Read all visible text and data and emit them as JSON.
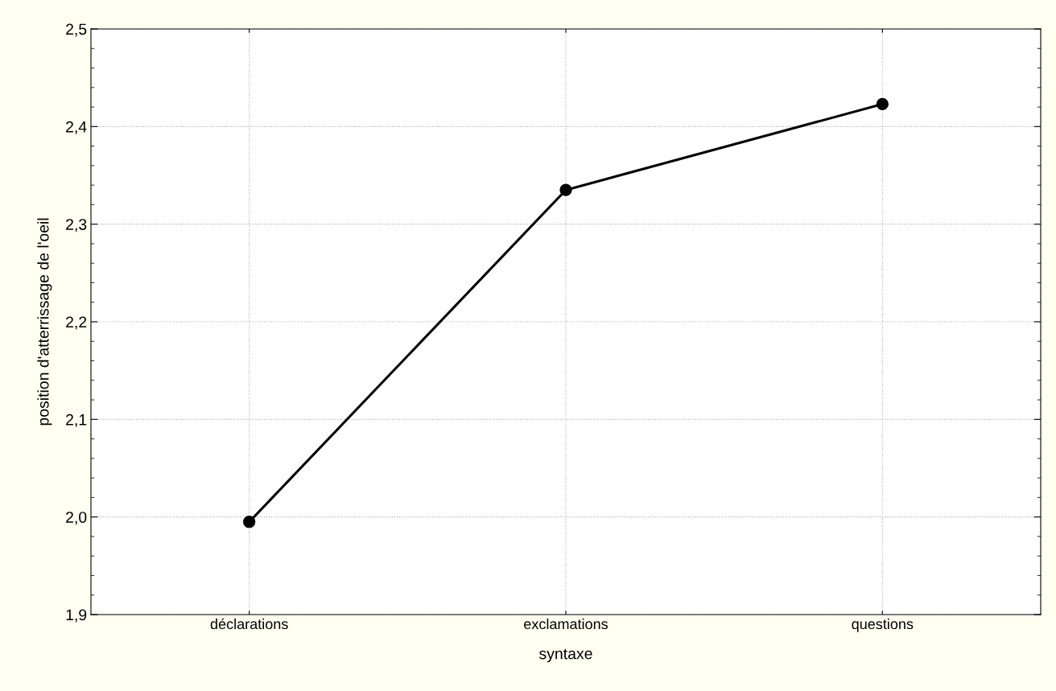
{
  "chart_data": {
    "type": "line",
    "xlabel": "syntaxe",
    "ylabel": "position d'atterrissage de l'oeil",
    "categories": [
      "déclarations",
      "exclamations",
      "questions"
    ],
    "series": [
      {
        "color": "#000000",
        "values": [
          1.995,
          2.335,
          2.423
        ]
      }
    ],
    "ylim": [
      1.9,
      2.5
    ],
    "yticks": [
      {
        "value": 1.9,
        "label": "1,9"
      },
      {
        "value": 2.0,
        "label": "2,0"
      },
      {
        "value": 2.1,
        "label": "2,1"
      },
      {
        "value": 2.2,
        "label": "2,2"
      },
      {
        "value": 2.3,
        "label": "2,3"
      },
      {
        "value": 2.4,
        "label": "2,4"
      },
      {
        "value": 2.5,
        "label": "2,5"
      }
    ],
    "grid": true,
    "marker": "circle",
    "line_style": "solid"
  }
}
